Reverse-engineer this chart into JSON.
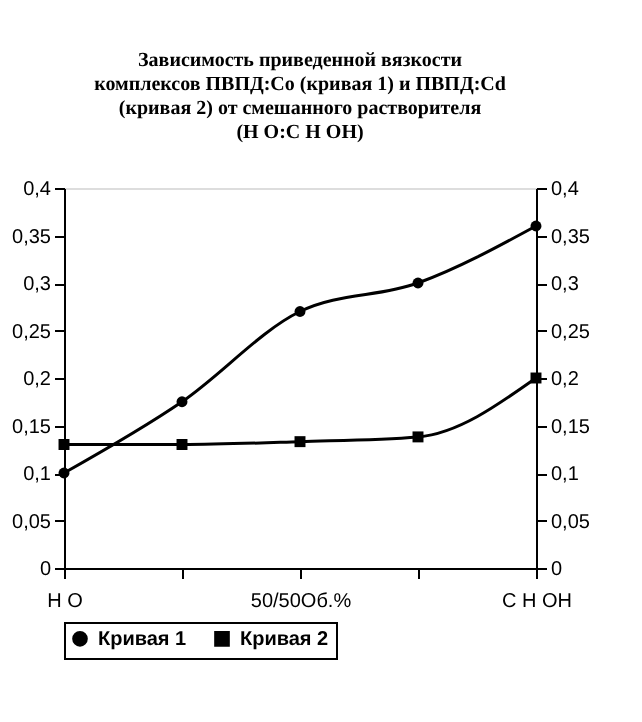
{
  "chart_data": {
    "type": "line",
    "title": "Зависимость приведенной вязкости комплексов ПВПД:Co (кривая 1) и ПВПД:Cd (кривая 2) от смешанного растворителя (H O:C H OH)",
    "categories": [
      "H O",
      null,
      "50/50Об.%",
      null,
      "C H OH"
    ],
    "series": [
      {
        "name": "Кривая 1",
        "color": "#000000",
        "marker": "circle",
        "values": [
          0.1,
          0.175,
          0.27,
          0.3,
          0.36
        ]
      },
      {
        "name": "Кривая 2",
        "color": "#000000",
        "marker": "square",
        "values": [
          0.13,
          0.13,
          0.133,
          0.138,
          0.2
        ]
      }
    ],
    "ylim": [
      0,
      0.4
    ],
    "yticks": [
      0,
      {
        "value": 0.05,
        "label": "0,05"
      },
      {
        "value": 0.1,
        "label": "0,1"
      },
      {
        "value": 0.15,
        "label": "0,15"
      },
      {
        "value": 0.2,
        "label": "0,2"
      },
      {
        "value": 0.25,
        "label": "0,25"
      },
      {
        "value": 0.3,
        "label": "0,3"
      },
      {
        "value": 0.35,
        "label": "0,35"
      },
      {
        "value": 0.4,
        "label": "0,4"
      }
    ],
    "y2lim": [
      0,
      0.4
    ],
    "y2ticks": [
      0,
      {
        "value": 0.05,
        "label": "0,05"
      },
      {
        "value": 0.1,
        "label": "0,1"
      },
      {
        "value": 0.15,
        "label": "0,15"
      },
      {
        "value": 0.2,
        "label": "0,2"
      },
      {
        "value": 0.25,
        "label": "0,25"
      },
      {
        "value": 0.3,
        "label": "0,3"
      },
      {
        "value": 0.35,
        "label": "0,35"
      },
      {
        "value": 0.4,
        "label": "0,4"
      }
    ],
    "grid": false,
    "legend": "bottom",
    "line_style": "solid"
  }
}
